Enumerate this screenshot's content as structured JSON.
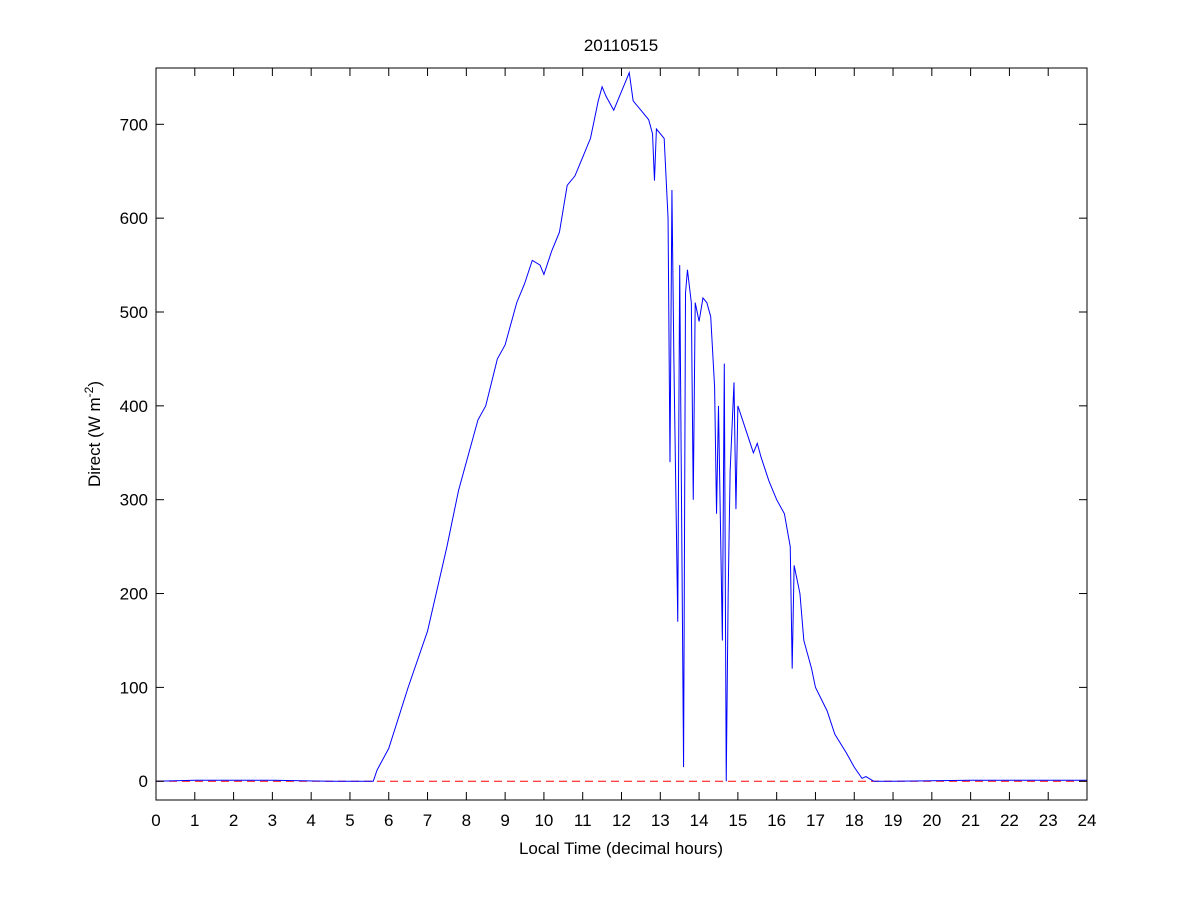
{
  "chart_data": {
    "type": "line",
    "title": "20110515",
    "x_label": "Local Time (decimal hours)",
    "y_label": {
      "text": "Direct (W m",
      "superscript": "-2",
      "tail": ")"
    },
    "x": [
      0,
      1,
      3,
      4.5,
      5.6,
      5.7,
      6,
      6.5,
      7,
      7.5,
      7.8,
      8,
      8.3,
      8.5,
      8.8,
      9,
      9.3,
      9.5,
      9.7,
      9.9,
      10,
      10.2,
      10.4,
      10.6,
      10.8,
      11,
      11.2,
      11.4,
      11.5,
      11.6,
      11.8,
      12,
      12.1,
      12.2,
      12.3,
      12.5,
      12.7,
      12.8,
      12.85,
      12.9,
      13.1,
      13.2,
      13.25,
      13.3,
      13.35,
      13.45,
      13.5,
      13.6,
      13.65,
      13.7,
      13.8,
      13.85,
      13.9,
      14,
      14.1,
      14.2,
      14.3,
      14.4,
      14.45,
      14.5,
      14.6,
      14.65,
      14.7,
      14.75,
      14.8,
      14.9,
      14.95,
      15,
      15.2,
      15.4,
      15.5,
      15.6,
      15.8,
      16,
      16.2,
      16.35,
      16.4,
      16.45,
      16.6,
      16.7,
      16.9,
      17,
      17.3,
      17.5,
      17.8,
      18,
      18.2,
      18.3,
      18.5,
      19,
      21,
      24
    ],
    "series": [
      {
        "color": "#0000ff",
        "values": [
          0,
          1,
          1,
          0,
          0,
          12,
          35,
          100,
          160,
          250,
          310,
          340,
          385,
          400,
          450,
          465,
          510,
          530,
          555,
          550,
          540,
          565,
          585,
          635,
          645,
          665,
          685,
          725,
          740,
          730,
          715,
          735,
          745,
          755,
          725,
          715,
          705,
          690,
          640,
          695,
          685,
          600,
          340,
          630,
          450,
          170,
          550,
          15,
          520,
          545,
          510,
          300,
          510,
          490,
          515,
          510,
          495,
          420,
          285,
          400,
          150,
          445,
          0,
          200,
          330,
          425,
          290,
          400,
          375,
          350,
          360,
          345,
          320,
          300,
          285,
          250,
          120,
          230,
          200,
          150,
          120,
          100,
          75,
          50,
          30,
          15,
          3,
          5,
          0,
          0,
          1,
          1
        ]
      }
    ],
    "reference_line": {
      "value": 0,
      "color": "#ff0000",
      "style": "dashed"
    },
    "xlim": [
      0,
      24
    ],
    "xticks": [
      0,
      1,
      2,
      3,
      4,
      5,
      6,
      7,
      8,
      9,
      10,
      11,
      12,
      13,
      14,
      15,
      16,
      17,
      18,
      19,
      20,
      21,
      22,
      23,
      24
    ],
    "ylim": [
      -20,
      760
    ],
    "yticks": [
      0,
      100,
      200,
      300,
      400,
      500,
      600,
      700
    ]
  }
}
